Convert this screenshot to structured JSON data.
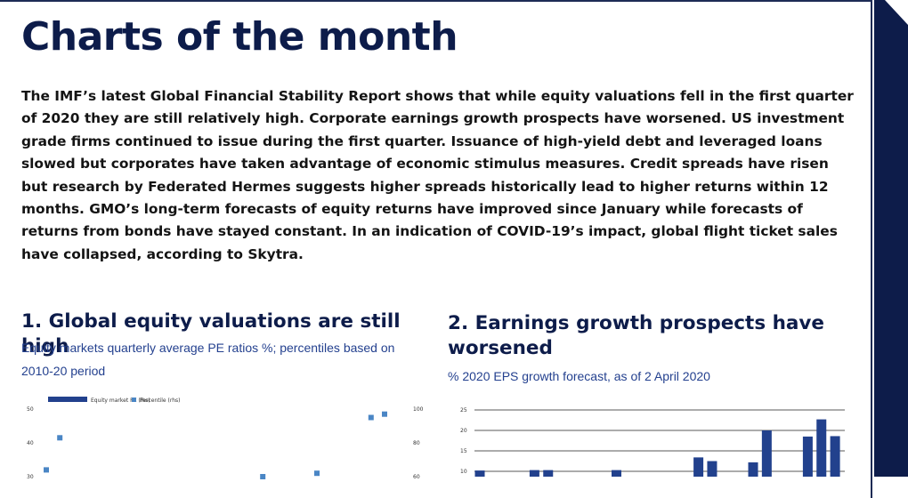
{
  "page": {
    "title": "Charts of the month",
    "intro": "The IMF’s latest Global Financial Stability Report shows that while equity valuations fell in the first quarter of 2020 they are still relatively high. Corporate earnings growth prospects have worsened. US investment grade firms continued to issue during the first quarter. Issuance of high-yield debt and leveraged loans slowed but corporates have taken advantage of economic stimulus measures. Credit spreads have risen but research by Federated Hermes suggests higher spreads historically lead to higher returns within 12 months. GMO’s long-term forecasts of equity returns have improved since January while forecasts of returns from bonds have stayed constant. In an indication of COVID-19’s impact, global flight ticket sales have collapsed, according to Skytra."
  },
  "colors": {
    "navy": "#0d1c4a",
    "bar": "#22418d",
    "point": "#4a86c5",
    "subtitle": "#24418f"
  },
  "chart_data": [
    {
      "type": "bar",
      "title": "1. Global equity valuations are still high",
      "subtitle": "Equity markets quarterly average PE ratios %; percentiles based on 2010-20 period",
      "legend": [
        "Equity market PE (lhs)",
        "Percentile (rhs)"
      ],
      "y_left_ticks": [
        "50",
        "40",
        "30"
      ],
      "y_right_ticks": [
        "100",
        "80",
        "60"
      ],
      "series": [
        {
          "name": "Percentile (rhs)",
          "type": "scatter",
          "values": [
            64,
            83,
            null,
            null,
            null,
            null,
            null,
            null,
            null,
            null,
            null,
            null,
            null,
            null,
            null,
            null,
            60,
            null,
            null,
            null,
            62,
            null,
            null,
            null,
            95,
            97
          ]
        }
      ]
    },
    {
      "type": "bar",
      "title": "2. Earnings growth prospects have worsened",
      "subtitle": "% 2020 EPS growth forecast, as of 2 April 2020",
      "y_ticks": [
        "25",
        "20",
        "15",
        "10"
      ],
      "series": [
        {
          "name": "",
          "values": [
            10.2,
            null,
            null,
            null,
            10.3,
            10.3,
            null,
            null,
            null,
            null,
            10.3,
            null,
            null,
            null,
            null,
            null,
            13.4,
            12.5,
            null,
            null,
            12.2,
            20.0,
            null,
            null,
            18.5,
            22.7,
            18.6
          ]
        }
      ]
    }
  ]
}
